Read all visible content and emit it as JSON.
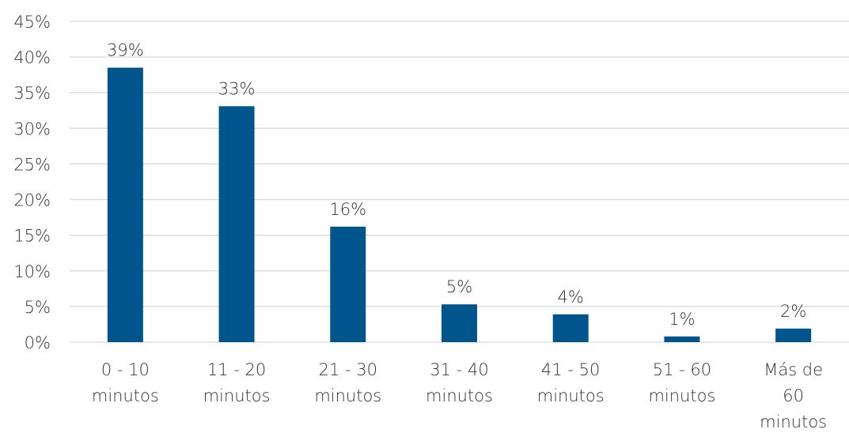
{
  "chart_data": {
    "type": "bar",
    "categories": [
      [
        "0 - 10",
        "minutos"
      ],
      [
        "11 - 20",
        "minutos"
      ],
      [
        "21 - 30",
        "minutos"
      ],
      [
        "31 - 40",
        "minutos"
      ],
      [
        "41 - 50",
        "minutos"
      ],
      [
        "51 - 60",
        "minutos"
      ],
      [
        "Más de",
        "60",
        "minutos"
      ]
    ],
    "values": [
      38.5,
      33.1,
      16.2,
      5.3,
      3.9,
      0.8,
      1.9
    ],
    "data_labels": [
      "39%",
      "33%",
      "16%",
      "5%",
      "4%",
      "1%",
      "2%"
    ],
    "y_ticks": [
      0,
      5,
      10,
      15,
      20,
      25,
      30,
      35,
      40,
      45
    ],
    "y_tick_labels": [
      "0%",
      "5%",
      "10%",
      "15%",
      "20%",
      "25%",
      "30%",
      "35%",
      "40%",
      "45%"
    ],
    "ylim": [
      0,
      45
    ],
    "grid": true,
    "legend": "none",
    "bar_color": "#00558C",
    "grid_color": "#D9D9D9"
  }
}
